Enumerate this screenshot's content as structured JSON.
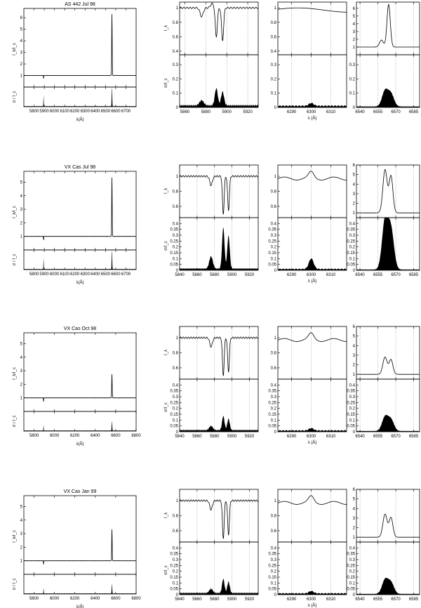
{
  "figure": {
    "axis_label_lambda": "λ(Å)",
    "axis_label_lambda_zoom": "λ (Å)",
    "ylabel_flux": "I_λ/I_c",
    "ylabel_ratio": "σ / I_c",
    "ylabel_flux_zoom": "I_λ",
    "ylabel_ratio_zoom": "σ/I_c"
  },
  "chart_data": [
    {
      "type": "line",
      "title": "AS 442 Jul 98",
      "overview": {
        "xlim": [
          5700,
          6800
        ],
        "xticks": [
          5800,
          5900,
          6000,
          6100,
          6200,
          6300,
          6400,
          6500,
          6600,
          6700
        ],
        "flux_ylim": [
          0,
          6.8
        ],
        "flux_yticks": [
          1,
          2,
          3,
          4,
          5,
          6
        ],
        "ratio_ylim": [
          0,
          0.5
        ],
        "peak_x": 6563,
        "peak_flux": 6.5,
        "na_x": 5893,
        "peak_ratio": 0.5
      },
      "zoom": {
        "panels": [
          {
            "xlim": [
              5855,
              5930
            ],
            "xticks": [
              5860,
              5880,
              5900,
              5920
            ],
            "flux_ylim": [
              0.35,
              1.08
            ],
            "flux_yticks": [
              0.4,
              0.6,
              0.8,
              1
            ],
            "ratio_ylim": [
              0,
              0.37
            ],
            "ratio_yticks": [
              0,
              0.1,
              0.2,
              0.3
            ]
          },
          {
            "xlim": [
              6283,
              6318
            ],
            "xticks": [
              6290,
              6300,
              6310
            ],
            "flux_ylim": [
              0.35,
              1.08
            ],
            "flux_yticks": [
              0.4,
              0.6,
              0.8,
              1
            ],
            "ratio_ylim": [
              0,
              0.37
            ],
            "ratio_yticks": [
              0,
              0.1,
              0.2,
              0.3
            ]
          },
          {
            "xlim": [
              6537,
              6590
            ],
            "xticks": [
              6540,
              6555,
              6570,
              6585
            ],
            "flux_ylim": [
              0,
              6.8
            ],
            "flux_yticks": [
              1,
              2,
              3,
              4,
              5,
              6
            ],
            "ratio_ylim": [
              0,
              0.37
            ],
            "ratio_yticks": [
              0,
              0.1,
              0.2,
              0.3
            ]
          }
        ]
      }
    },
    {
      "type": "line",
      "title": "VX Cas Jul 98",
      "overview": {
        "xlim": [
          5700,
          6800
        ],
        "xticks": [
          5800,
          5900,
          6000,
          6100,
          6200,
          6300,
          6400,
          6500,
          6600,
          6700
        ],
        "flux_ylim": [
          0,
          5.8
        ],
        "flux_yticks": [
          1,
          2,
          3,
          4,
          5
        ],
        "ratio_ylim": [
          0,
          0.5
        ],
        "peak_x": 6563,
        "peak_flux": 5.5,
        "na_x": 5893,
        "peak_ratio": 0.5
      },
      "zoom": {
        "panels": [
          {
            "xlim": [
              5840,
              5930
            ],
            "xticks": [
              5840,
              5860,
              5880,
              5900,
              5920
            ],
            "flux_ylim": [
              0.45,
              1.15
            ],
            "flux_yticks": [
              0.6,
              0.8,
              1
            ],
            "ratio_ylim": [
              0,
              0.45
            ],
            "ratio_yticks": [
              0,
              0.05,
              0.1,
              0.15,
              0.2,
              0.25,
              0.3,
              0.35,
              0.4
            ]
          },
          {
            "xlim": [
              6283,
              6318
            ],
            "xticks": [
              6290,
              6300,
              6310
            ],
            "flux_ylim": [
              0.45,
              1.15
            ],
            "flux_yticks": [
              0.6,
              0.8,
              1
            ],
            "ratio_ylim": [
              0,
              0.45
            ],
            "ratio_yticks": [
              0,
              0.05,
              0.1,
              0.15,
              0.2,
              0.25,
              0.3,
              0.35,
              0.4
            ]
          },
          {
            "xlim": [
              6537,
              6590
            ],
            "xticks": [
              6540,
              6555,
              6570,
              6585
            ],
            "flux_ylim": [
              0.5,
              6
            ],
            "flux_yticks": [
              1,
              2,
              3,
              4,
              5,
              6
            ],
            "ratio_ylim": [
              0,
              0.45
            ],
            "ratio_yticks": [
              0,
              0.05,
              0.1,
              0.15,
              0.2,
              0.25,
              0.3,
              0.35,
              0.4
            ]
          }
        ]
      }
    },
    {
      "type": "line",
      "title": "VX Cas Oct 98",
      "overview": {
        "xlim": [
          5700,
          6800
        ],
        "xticks": [
          5800,
          6000,
          6200,
          6400,
          6600,
          6800
        ],
        "flux_ylim": [
          0,
          5.8
        ],
        "flux_yticks": [
          1,
          2,
          3,
          4,
          5
        ],
        "ratio_ylim": [
          0,
          0.5
        ],
        "peak_x": 6563,
        "peak_flux": 2.8,
        "na_x": 5893,
        "peak_ratio": 0.25
      },
      "zoom": {
        "panels": [
          {
            "xlim": [
              5840,
              5930
            ],
            "xticks": [
              5840,
              5860,
              5880,
              5900,
              5920
            ],
            "flux_ylim": [
              0.45,
              1.15
            ],
            "flux_yticks": [
              0.6,
              0.8,
              1
            ],
            "ratio_ylim": [
              0,
              0.45
            ],
            "ratio_yticks": [
              0,
              0.05,
              0.1,
              0.15,
              0.2,
              0.25,
              0.3,
              0.35,
              0.4
            ]
          },
          {
            "xlim": [
              6283,
              6318
            ],
            "xticks": [
              6290,
              6300,
              6310
            ],
            "flux_ylim": [
              0.45,
              1.15
            ],
            "flux_yticks": [
              0.6,
              0.8,
              1
            ],
            "ratio_ylim": [
              0,
              0.45
            ],
            "ratio_yticks": [
              0,
              0.05,
              0.1,
              0.15,
              0.2,
              0.25,
              0.3,
              0.35,
              0.4
            ]
          },
          {
            "xlim": [
              6537,
              6590
            ],
            "xticks": [
              6540,
              6555,
              6570,
              6585
            ],
            "flux_ylim": [
              0.5,
              6
            ],
            "flux_yticks": [
              1,
              2,
              3,
              4,
              5,
              6
            ],
            "ratio_ylim": [
              0,
              0.45
            ],
            "ratio_yticks": [
              0,
              0.05,
              0.1,
              0.15,
              0.2,
              0.25,
              0.3,
              0.35,
              0.4
            ]
          }
        ]
      }
    },
    {
      "type": "line",
      "title": "VX Cas Jan 99",
      "overview": {
        "xlim": [
          5700,
          6800
        ],
        "xticks": [
          5800,
          6000,
          6200,
          6400,
          6600,
          6800
        ],
        "flux_ylim": [
          0,
          5.8
        ],
        "flux_yticks": [
          1,
          2,
          3,
          4,
          5
        ],
        "ratio_ylim": [
          0,
          0.5
        ],
        "peak_x": 6563,
        "peak_flux": 3.4,
        "na_x": 5893,
        "peak_ratio": 0.25
      },
      "zoom": {
        "panels": [
          {
            "xlim": [
              5840,
              5930
            ],
            "xticks": [
              5840,
              5860,
              5880,
              5900,
              5920
            ],
            "flux_ylim": [
              0.45,
              1.15
            ],
            "flux_yticks": [
              0.6,
              0.8,
              1
            ],
            "ratio_ylim": [
              0,
              0.45
            ],
            "ratio_yticks": [
              0,
              0.05,
              0.1,
              0.15,
              0.2,
              0.25,
              0.3,
              0.35,
              0.4
            ]
          },
          {
            "xlim": [
              6283,
              6318
            ],
            "xticks": [
              6290,
              6300,
              6310
            ],
            "flux_ylim": [
              0.45,
              1.15
            ],
            "flux_yticks": [
              0.6,
              0.8,
              1
            ],
            "ratio_ylim": [
              0,
              0.45
            ],
            "ratio_yticks": [
              0,
              0.05,
              0.1,
              0.15,
              0.2,
              0.25,
              0.3,
              0.35,
              0.4
            ]
          },
          {
            "xlim": [
              6537,
              6590
            ],
            "xticks": [
              6540,
              6555,
              6570,
              6585
            ],
            "flux_ylim": [
              0.5,
              6
            ],
            "flux_yticks": [
              1,
              2,
              3,
              4,
              5,
              6
            ],
            "ratio_ylim": [
              0,
              0.45
            ],
            "ratio_yticks": [
              0,
              0.05,
              0.1,
              0.15,
              0.2,
              0.25,
              0.3,
              0.35,
              0.4
            ]
          }
        ]
      }
    }
  ]
}
